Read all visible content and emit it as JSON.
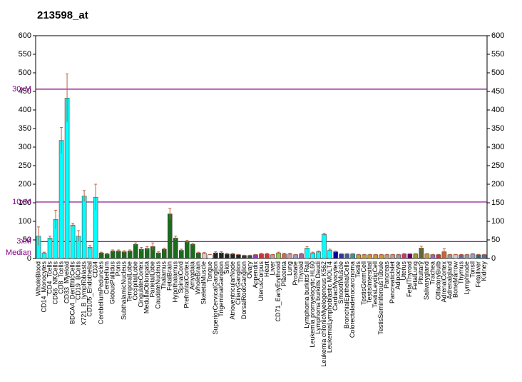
{
  "chart_data": {
    "type": "bar",
    "title": "213598_at",
    "categories": [
      "WholeBlood",
      "CD14_Monocytes",
      "CD4_Tcells",
      "CD56_NKCells",
      "CD8_Tcells",
      "CD33_Myeloid",
      "BDCA4_DentriticCells",
      "CD19_BCells",
      "X721_B_lymphoblasts",
      "CD105_Endothelial",
      "CD34",
      "CerebellumPeduncles",
      "Cerebellum",
      "GlobusPallidus",
      "Pons",
      "SubthalamicNucleus",
      "TemporalLobe",
      "OccipitalLobe",
      "CingulateCortex",
      "MedullaOblongata",
      "ParietalLobe",
      "CaudateNucleus",
      "Thalamus",
      "FetalBrain",
      "Hypothalamus",
      "SpinalCord",
      "PrefrontalCortex",
      "Amygdala",
      "WholeBrain",
      "SkeletalMuscle",
      "Tongue",
      "SuperiorCervicalGanglion",
      "TrigeminalGanglion",
      "Skin",
      "AtrioventricularNode",
      "CiliaryGanglion",
      "DorsalRootGanglion",
      "Ovary",
      "Appendix",
      "UterusCorpus",
      "Heart",
      "Liver",
      "CD71_EarlyErythroid",
      "Placenta",
      "Lung",
      "Prostate",
      "Thyroid",
      "Lymphoma burkitts Raji",
      "Leukemia promyelocytic HL60",
      "Lymphoma burkitts Daudi",
      "Leukemia chronicMyelogenous K562",
      "LeukemiaLymphoblastic MOLT4",
      "CardiacMyocytes",
      "SmoothMuscle",
      "BronchialEpithelialCells",
      "Colorectaladenocarcinoma",
      "Testis",
      "TestisGermCell",
      "TestisIntersitial",
      "TestisLeydigCell",
      "TestisSeminiferousTubule",
      "Pancreas",
      "PancreaticIslet",
      "Adipocyte",
      "Uterus",
      "FetalThyroid",
      "FetalLung",
      "Pituitary",
      "Salivarygland",
      "Trachea",
      "OlfactoryBulb",
      "AdrenalCortex",
      "Adrenalgland",
      "BoneMarrow",
      "Thymus",
      "Lymphnode",
      "Tonsil",
      "Fetalliver",
      "Kidney"
    ],
    "values": [
      60,
      15,
      55,
      105,
      318,
      432,
      90,
      60,
      168,
      30,
      165,
      15,
      12,
      20,
      20,
      18,
      20,
      38,
      25,
      27,
      32,
      15,
      25,
      120,
      55,
      22,
      45,
      38,
      15,
      14,
      10,
      15,
      15,
      12,
      12,
      10,
      8,
      8,
      10,
      12,
      12,
      10,
      15,
      12,
      12,
      10,
      12,
      28,
      15,
      18,
      65,
      22,
      18,
      12,
      12,
      12,
      10,
      10,
      10,
      10,
      10,
      10,
      10,
      10,
      12,
      12,
      12,
      28,
      12,
      10,
      10,
      18,
      10,
      10,
      10,
      10,
      12,
      10,
      10
    ],
    "errors": [
      25,
      2,
      5,
      25,
      35,
      65,
      5,
      15,
      15,
      5,
      35,
      2,
      2,
      3,
      3,
      3,
      3,
      4,
      5,
      5,
      10,
      3,
      3,
      15,
      5,
      3,
      4,
      3,
      2,
      2,
      1,
      3,
      3,
      2,
      2,
      1,
      1,
      1,
      1,
      2,
      2,
      1,
      2,
      2,
      2,
      1,
      2,
      4,
      2,
      2,
      3,
      3,
      2,
      1,
      1,
      1,
      1,
      1,
      1,
      1,
      1,
      1,
      1,
      1,
      1,
      1,
      1,
      5,
      1,
      1,
      1,
      8,
      1,
      1,
      1,
      1,
      1,
      1,
      1
    ],
    "colors": [
      "#00ffff",
      "#00ffff",
      "#00ffff",
      "#00ffff",
      "#00ffff",
      "#00ffff",
      "#00ffff",
      "#00ffff",
      "#00ffff",
      "#00ffff",
      "#00ffff",
      "#1a6b1a",
      "#1a6b1a",
      "#1a6b1a",
      "#1a6b1a",
      "#1a6b1a",
      "#1a6b1a",
      "#1a6b1a",
      "#1a6b1a",
      "#1a6b1a",
      "#1a6b1a",
      "#1a6b1a",
      "#1a6b1a",
      "#1a6b1a",
      "#1a6b1a",
      "#1a6b1a",
      "#1a6b1a",
      "#1a6b1a",
      "#1a6b1a",
      "#f4c2c2",
      "#ffffff",
      "#222222",
      "#222222",
      "#222222",
      "#222222",
      "#222222",
      "#333333",
      "#444444",
      "#9933cc",
      "#cc3333",
      "#cc3333",
      "#cc9999",
      "#99cc33",
      "#cc6666",
      "#cc9999",
      "#9999cc",
      "#996699",
      "#00ffff",
      "#00ffff",
      "#00ffff",
      "#00ffff",
      "#00ffff",
      "#000099",
      "#333399",
      "#336699",
      "#339999",
      "#cc9933",
      "#cc9933",
      "#cc9933",
      "#cc9933",
      "#cc9933",
      "#cc9966",
      "#cc9999",
      "#999999",
      "#cc3366",
      "#660066",
      "#999933",
      "#666633",
      "#cc9933",
      "#9966cc",
      "#cc3333",
      "#cc6633",
      "#999999",
      "#cccccc",
      "#666699",
      "#999999",
      "#9999cc",
      "#336666",
      "#666699"
    ],
    "ylim": [
      0,
      600
    ],
    "yticks": [
      0,
      50,
      100,
      150,
      200,
      250,
      300,
      350,
      400,
      450,
      500,
      550,
      600
    ],
    "reference_lines": [
      {
        "label": "Median",
        "value": 15.2
      },
      {
        "label": "3xM",
        "value": 45.6
      },
      {
        "label": "10xM",
        "value": 152
      },
      {
        "label": "30xM",
        "value": 456
      }
    ],
    "reference_color": "#800080"
  }
}
